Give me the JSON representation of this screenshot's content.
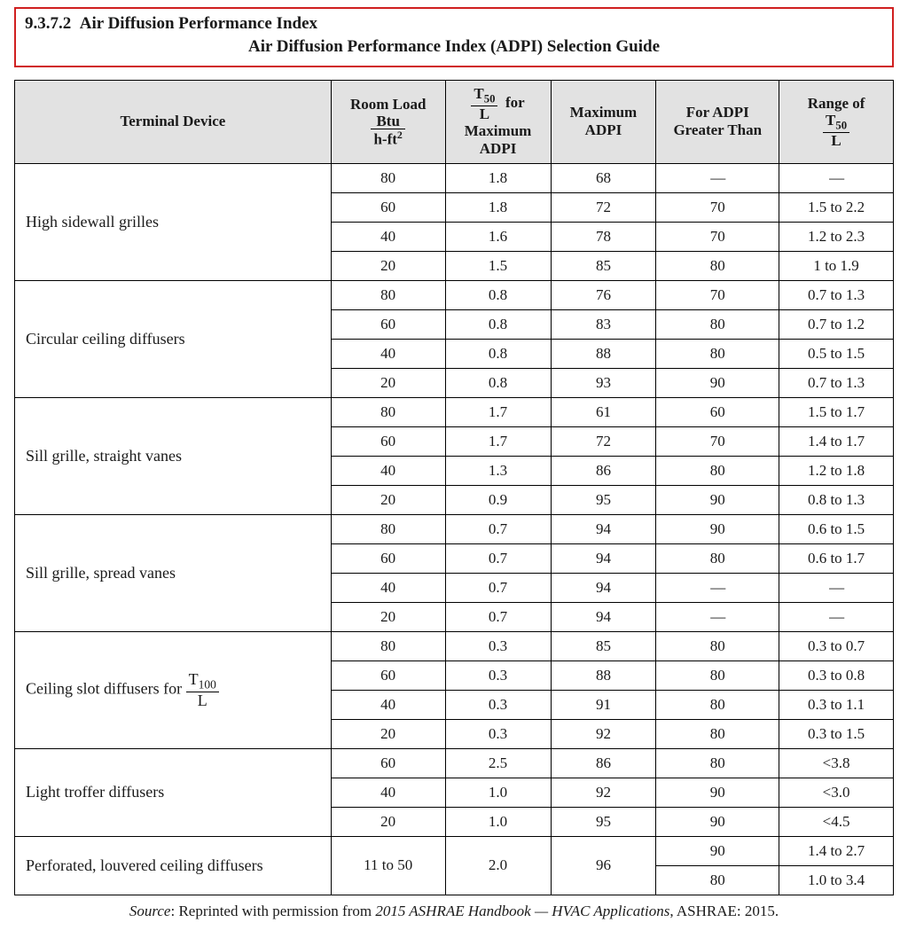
{
  "header": {
    "section_number": "9.3.7.2",
    "section_title": "Air Diffusion Performance Index",
    "subtitle": "Air Diffusion Performance Index (ADPI) Selection Guide"
  },
  "columns": {
    "c1": "Terminal Device",
    "c2_top": "Room Load",
    "c2_unit_num": "Btu",
    "c2_unit_den": "h-ft",
    "c2_unit_exp": "2",
    "c3_for": "for",
    "c3_frac_num": "T",
    "c3_frac_sub": "50",
    "c3_frac_den": "L",
    "c3_bottom": "Maximum ADPI",
    "c4": "Maximum ADPI",
    "c5": "For ADPI Greater Than",
    "c6_top": "Range of",
    "c6_frac_num": "T",
    "c6_frac_sub": "50",
    "c6_frac_den": "L"
  },
  "labels": {
    "dev_slot_prefix": "Ceiling slot diffusers for ",
    "dev_slot_T": "T",
    "dev_slot_sub": "100",
    "dev_slot_L": "L"
  },
  "groups": [
    {
      "device": "High sidewall grilles",
      "rows": [
        {
          "load": "80",
          "t50L": "1.8",
          "maxADPI": "68",
          "gt": "—",
          "range": "—"
        },
        {
          "load": "60",
          "t50L": "1.8",
          "maxADPI": "72",
          "gt": "70",
          "range": "1.5 to 2.2"
        },
        {
          "load": "40",
          "t50L": "1.6",
          "maxADPI": "78",
          "gt": "70",
          "range": "1.2 to 2.3"
        },
        {
          "load": "20",
          "t50L": "1.5",
          "maxADPI": "85",
          "gt": "80",
          "range": "1 to 1.9"
        }
      ]
    },
    {
      "device": "Circular ceiling diffusers",
      "rows": [
        {
          "load": "80",
          "t50L": "0.8",
          "maxADPI": "76",
          "gt": "70",
          "range": "0.7 to 1.3"
        },
        {
          "load": "60",
          "t50L": "0.8",
          "maxADPI": "83",
          "gt": "80",
          "range": "0.7 to 1.2"
        },
        {
          "load": "40",
          "t50L": "0.8",
          "maxADPI": "88",
          "gt": "80",
          "range": "0.5 to 1.5"
        },
        {
          "load": "20",
          "t50L": "0.8",
          "maxADPI": "93",
          "gt": "90",
          "range": "0.7 to 1.3"
        }
      ]
    },
    {
      "device": "Sill grille, straight vanes",
      "rows": [
        {
          "load": "80",
          "t50L": "1.7",
          "maxADPI": "61",
          "gt": "60",
          "range": "1.5 to 1.7"
        },
        {
          "load": "60",
          "t50L": "1.7",
          "maxADPI": "72",
          "gt": "70",
          "range": "1.4 to 1.7"
        },
        {
          "load": "40",
          "t50L": "1.3",
          "maxADPI": "86",
          "gt": "80",
          "range": "1.2 to 1.8"
        },
        {
          "load": "20",
          "t50L": "0.9",
          "maxADPI": "95",
          "gt": "90",
          "range": "0.8 to 1.3"
        }
      ]
    },
    {
      "device": "Sill grille, spread vanes",
      "rows": [
        {
          "load": "80",
          "t50L": "0.7",
          "maxADPI": "94",
          "gt": "90",
          "range": "0.6 to 1.5"
        },
        {
          "load": "60",
          "t50L": "0.7",
          "maxADPI": "94",
          "gt": "80",
          "range": "0.6 to 1.7"
        },
        {
          "load": "40",
          "t50L": "0.7",
          "maxADPI": "94",
          "gt": "—",
          "range": "—"
        },
        {
          "load": "20",
          "t50L": "0.7",
          "maxADPI": "94",
          "gt": "—",
          "range": "—"
        }
      ]
    },
    {
      "device": "__SLOT__",
      "rows": [
        {
          "load": "80",
          "t50L": "0.3",
          "maxADPI": "85",
          "gt": "80",
          "range": "0.3 to 0.7"
        },
        {
          "load": "60",
          "t50L": "0.3",
          "maxADPI": "88",
          "gt": "80",
          "range": "0.3 to 0.8"
        },
        {
          "load": "40",
          "t50L": "0.3",
          "maxADPI": "91",
          "gt": "80",
          "range": "0.3 to 1.1"
        },
        {
          "load": "20",
          "t50L": "0.3",
          "maxADPI": "92",
          "gt": "80",
          "range": "0.3 to 1.5"
        }
      ]
    },
    {
      "device": "Light troffer diffusers",
      "rows": [
        {
          "load": "60",
          "t50L": "2.5",
          "maxADPI": "86",
          "gt": "80",
          "range": "<3.8"
        },
        {
          "load": "40",
          "t50L": "1.0",
          "maxADPI": "92",
          "gt": "90",
          "range": "<3.0"
        },
        {
          "load": "20",
          "t50L": "1.0",
          "maxADPI": "95",
          "gt": "90",
          "range": "<4.5"
        }
      ]
    },
    {
      "device": "Perforated, louvered ceiling diffusers",
      "perforated": true,
      "load": "11 to 50",
      "t50L": "2.0",
      "maxADPI": "96",
      "rows": [
        {
          "gt": "90",
          "range": "1.4 to 2.7"
        },
        {
          "gt": "80",
          "range": "1.0 to 3.4"
        }
      ]
    }
  ],
  "source": {
    "label": "Source",
    "pre": ": Reprinted with permission from ",
    "book": "2015 ASHRAE Handbook — HVAC Applications",
    "post": ", ASHRAE: 2015."
  }
}
